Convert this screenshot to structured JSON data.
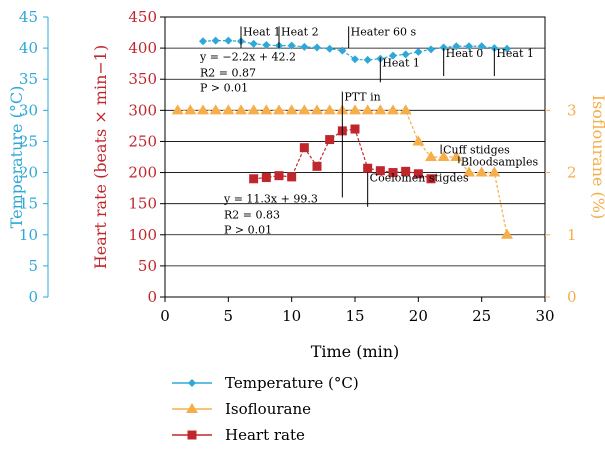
{
  "chart_data": {
    "type": "line",
    "x": {
      "label": "Time (min)",
      "range": [
        0,
        30
      ],
      "ticks": [
        "0",
        "5",
        "10",
        "15",
        "20",
        "25",
        "30"
      ]
    },
    "axes": {
      "temperature": {
        "label": "Temperature (°C)",
        "range": [
          0,
          45
        ],
        "ticks": [
          "0",
          "5",
          "10",
          "15",
          "20",
          "25",
          "30",
          "35",
          "40",
          "45"
        ],
        "color": "#2ea8d8"
      },
      "heart_rate": {
        "label": "Heart rate (beats × min−1)",
        "range": [
          0,
          450
        ],
        "ticks": [
          "0",
          "50",
          "100",
          "150",
          "200",
          "250",
          "300",
          "350",
          "400",
          "450"
        ],
        "color": "#c0272d"
      },
      "isoflurane": {
        "label": "Isoflourane (%)",
        "range": [
          0,
          4.5
        ],
        "ticks": [
          "0",
          "1",
          "2",
          "3"
        ],
        "color": "#f5ae4a"
      }
    },
    "grid": "horizontal",
    "series": [
      {
        "name": "Temperature (°C)",
        "axis": "temperature",
        "marker": "diamond",
        "color": "#2ea8d8",
        "x": [
          3,
          4,
          5,
          6,
          7,
          8,
          9,
          10,
          11,
          12,
          13,
          14,
          15,
          16,
          17,
          18,
          19,
          20,
          21,
          22,
          23,
          24,
          25,
          26,
          27
        ],
        "y": [
          41.1,
          41.2,
          41.2,
          41.1,
          40.7,
          40.5,
          40.4,
          40.4,
          40.2,
          40.1,
          39.9,
          39.6,
          38.2,
          38.1,
          38.3,
          38.8,
          39.0,
          39.4,
          39.8,
          40.1,
          40.3,
          40.3,
          40.3,
          40.0,
          39.9
        ]
      },
      {
        "name": "Isoflourane",
        "axis": "isoflurane",
        "marker": "triangle",
        "color": "#f5ae4a",
        "x": [
          1,
          2,
          3,
          4,
          5,
          6,
          7,
          8,
          9,
          10,
          11,
          12,
          13,
          14,
          15,
          16,
          17,
          18,
          19,
          20,
          21,
          22,
          23,
          24,
          25,
          26,
          27
        ],
        "y": [
          3,
          3,
          3,
          3,
          3,
          3,
          3,
          3,
          3,
          3,
          3,
          3,
          3,
          3,
          3,
          3,
          3,
          3,
          3,
          2.5,
          2.25,
          2.25,
          2.25,
          2,
          2,
          2,
          1
        ]
      },
      {
        "name": "Heart rate",
        "axis": "heart_rate",
        "marker": "square",
        "color": "#c0272d",
        "x": [
          7,
          8,
          9,
          10,
          11,
          12,
          13,
          14,
          15,
          16,
          17,
          18,
          19,
          20,
          21
        ],
        "y": [
          190,
          192,
          195,
          193,
          240,
          210,
          253,
          267,
          270,
          207,
          203,
          200,
          202,
          198,
          190
        ]
      }
    ],
    "annotations": [
      {
        "text": "Heat 1",
        "x": 6,
        "y1": 435,
        "y2": 400
      },
      {
        "text": "Heat 2",
        "x": 9,
        "y1": 435,
        "y2": 400
      },
      {
        "text": "Heater 60 s",
        "x": 14.5,
        "y1": 435,
        "y2": 400
      },
      {
        "text": "Heat 1",
        "x": 17,
        "y1": 385,
        "y2": 345
      },
      {
        "text": "Heat 0",
        "x": 22,
        "y1": 400,
        "y2": 355
      },
      {
        "text": "Heat 1",
        "x": 26,
        "y1": 400,
        "y2": 355
      },
      {
        "text": "PTT in",
        "x": 14,
        "y1": 330,
        "y2": 160
      },
      {
        "text": "Coelomen stigdes",
        "x": 16,
        "y1": 200,
        "y2": 145
      },
      {
        "text": "Cuff stidges",
        "x": 21.8,
        "y1": 245,
        "y2": 230
      },
      {
        "text": "Bloodsamples",
        "x": 23.2,
        "y1": 226,
        "y2": 215
      }
    ],
    "regression_temperature": {
      "eq": "y = −2.2x + 42.2",
      "r2": "R2 = 0.87",
      "p": "P > 0.01"
    },
    "regression_heart_rate": {
      "eq": "y = 11.3x + 99.3",
      "r2": "R2 = 0.83",
      "p": "P > 0.01"
    },
    "legend": {
      "position": "bottom",
      "entries": [
        "Temperature (°C)",
        "Isoflourane",
        "Heart rate"
      ]
    }
  }
}
